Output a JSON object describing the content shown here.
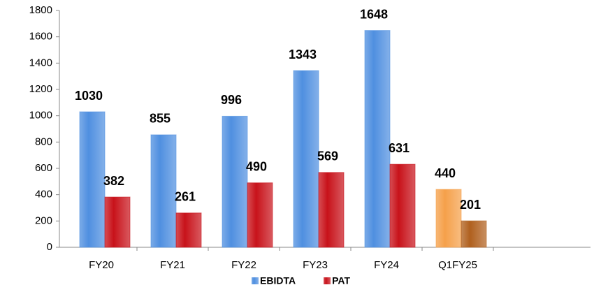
{
  "chart_data": {
    "type": "bar",
    "categories": [
      "FY20",
      "FY21",
      "FY22",
      "FY23",
      "FY24",
      "Q1FY25"
    ],
    "series": [
      {
        "name": "EBIDTA",
        "color": "#4f8fe0",
        "colors": [
          "#4f8fe0",
          "#4f8fe0",
          "#4f8fe0",
          "#4f8fe0",
          "#4f8fe0",
          "#f5a04a"
        ],
        "values": [
          1030,
          855,
          996,
          1343,
          1648,
          440
        ]
      },
      {
        "name": "PAT",
        "color": "#c8121a",
        "colors": [
          "#c8121a",
          "#c8121a",
          "#c8121a",
          "#c8121a",
          "#c8121a",
          "#b0601e"
        ],
        "values": [
          382,
          261,
          490,
          569,
          631,
          201
        ]
      }
    ],
    "ylim": [
      0,
      1800
    ],
    "yticks": [
      0,
      200,
      400,
      600,
      800,
      1000,
      1200,
      1400,
      1600,
      1800
    ],
    "legend": "bottom"
  }
}
